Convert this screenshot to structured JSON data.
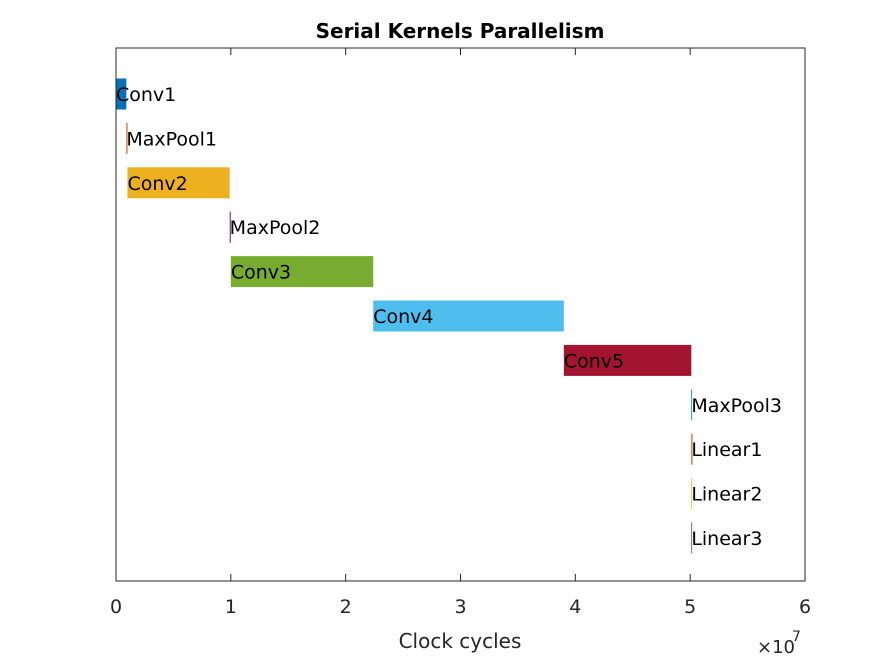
{
  "chart_data": {
    "type": "bar",
    "orientation": "horizontal-gantt",
    "title": "Serial Kernels Parallelism",
    "xlabel": "Clock cycles",
    "ylabel": "",
    "x_exponent_label": "×10",
    "x_exponent_power": "7",
    "xlim": [
      0,
      6
    ],
    "x_scale_factor": 10000000,
    "xticks": [
      "0",
      "1",
      "2",
      "3",
      "4",
      "5",
      "6"
    ],
    "grid": false,
    "bars": [
      {
        "name": "Conv1",
        "start": 0.0,
        "end": 0.09,
        "color": "#0072BD"
      },
      {
        "name": "MaxPool1",
        "start": 0.09,
        "end": 0.1,
        "color": "#D95319"
      },
      {
        "name": "Conv2",
        "start": 0.1,
        "end": 0.99,
        "color": "#EDB120"
      },
      {
        "name": "MaxPool2",
        "start": 0.99,
        "end": 1.0,
        "color": "#7E2F8E"
      },
      {
        "name": "Conv3",
        "start": 1.0,
        "end": 2.24,
        "color": "#77AC30"
      },
      {
        "name": "Conv4",
        "start": 2.24,
        "end": 3.9,
        "color": "#4DBEEE"
      },
      {
        "name": "Conv5",
        "start": 3.9,
        "end": 5.01,
        "color": "#A2142F"
      },
      {
        "name": "MaxPool3",
        "start": 5.01,
        "end": 5.015,
        "color": "#0072BD"
      },
      {
        "name": "Linear1",
        "start": 5.01,
        "end": 5.02,
        "color": "#D95319"
      },
      {
        "name": "Linear2",
        "start": 5.01,
        "end": 5.015,
        "color": "#EDB120"
      },
      {
        "name": "Linear3",
        "start": 5.01,
        "end": 5.012,
        "color": "#7E2F8E"
      }
    ]
  }
}
